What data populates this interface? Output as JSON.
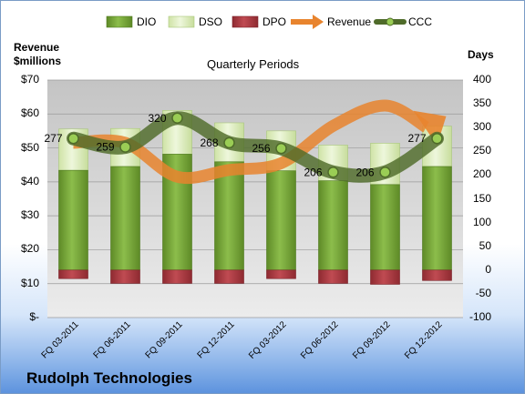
{
  "chart_data": {
    "type": "bar",
    "title": "Rudolph Technologies",
    "subtitle": "Quarterly Periods",
    "y_left_label": "Revenue\n$millions",
    "y_right_label": "Days",
    "y_left_ticks": [
      "$-",
      "$10",
      "$20",
      "$30",
      "$40",
      "$50",
      "$60",
      "$70"
    ],
    "y_right_ticks": [
      "-100",
      "-50",
      "0",
      "50",
      "100",
      "150",
      "200",
      "250",
      "300",
      "350",
      "400"
    ],
    "y_left_range": [
      0,
      70
    ],
    "y_right_range": [
      -100,
      400
    ],
    "categories": [
      "FQ 03-2011",
      "FQ 06-2011",
      "FQ 09-2011",
      "FQ 12-2011",
      "FQ 03-2012",
      "FQ 06-2012",
      "FQ 09-2012",
      "FQ 12-2012"
    ],
    "series": [
      {
        "name": "DIO",
        "axis": "right",
        "values": [
          210,
          218,
          244,
          228,
          209,
          188,
          180,
          218
        ]
      },
      {
        "name": "DSO",
        "axis": "right",
        "values": [
          87,
          80,
          92,
          82,
          84,
          75,
          87,
          85
        ]
      },
      {
        "name": "DPO",
        "axis": "right",
        "values": [
          -18,
          -28,
          -28,
          -28,
          -18,
          -28,
          -30,
          -22
        ]
      },
      {
        "name": "Revenue",
        "axis": "left",
        "values": [
          51.5,
          51.5,
          41.5,
          43.5,
          45.5,
          56.5,
          62.5,
          54.5
        ]
      },
      {
        "name": "CCC",
        "axis": "right",
        "values": [
          277,
          259,
          320,
          268,
          256,
          206,
          206,
          277
        ]
      }
    ],
    "data_labels": [
      "277",
      "259",
      "320",
      "268",
      "256",
      "206",
      "206",
      "277"
    ],
    "legend_position": "top",
    "colors": {
      "DIO": "#77a23a",
      "DSO": "#d4e8b0",
      "DPO": "#a8363d",
      "Revenue": "#e8842e",
      "CCC": "#4f6b2a",
      "plot_background": "#bfbfbf"
    },
    "grid": true
  }
}
